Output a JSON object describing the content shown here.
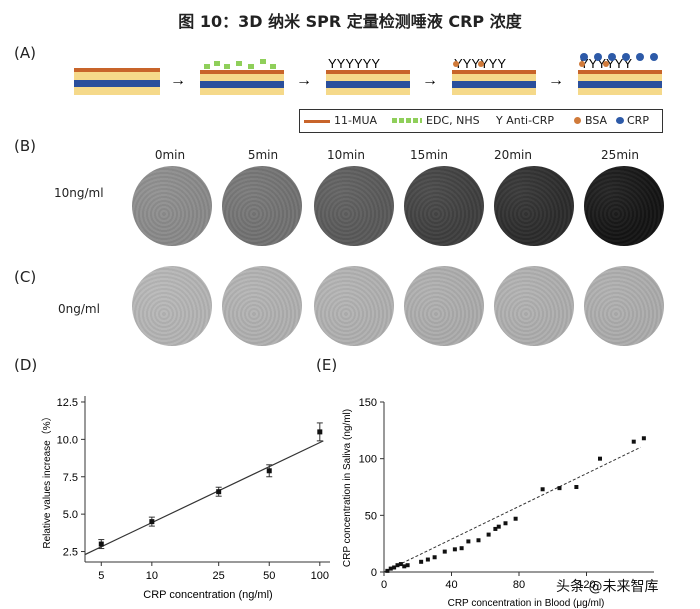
{
  "title": "图 10：3D 纳米 SPR 定量检测唾液 CRP 浓度",
  "panels": {
    "a": "(A)",
    "b": "(B)",
    "c": "(C)",
    "d": "(D)",
    "e": "(E)"
  },
  "legend": {
    "mua": "11-MUA",
    "edc": "EDC, NHS",
    "anti": "Y Anti-CRP",
    "bsa": "BSA",
    "crp": "CRP"
  },
  "times": [
    "0min",
    "5min",
    "10min",
    "15min",
    "20min",
    "25min"
  ],
  "row_b_label": "10ng/ml",
  "row_c_label": "0ng/ml",
  "colors": {
    "row_b": [
      "#8a8a8a",
      "#727272",
      "#5a5a5a",
      "#3f3f3f",
      "#2c2c2c",
      "#141414"
    ],
    "row_c": [
      "#b4b4b4",
      "#b0b0b0",
      "#b0b0b0",
      "#acacac",
      "#aeaeae",
      "#acacac"
    ],
    "mua": "#c8642a",
    "edc": "#8fcf5a",
    "bsa": "#d07a3a",
    "crp": "#2d5aa8",
    "blue_layer": "#2a4f9c",
    "yellow_layer": "#f5d98a"
  },
  "watermark": "头条 @未来智库",
  "chart_data": [
    {
      "type": "scatter",
      "panel": "D",
      "xlabel": "CRP concentration (ng/ml)",
      "ylabel": "Relative values increase（%）",
      "xscale": "log",
      "xticks": [
        5,
        10,
        25,
        50,
        100
      ],
      "yticks": [
        "2.5",
        "5.0",
        "7.5",
        "10.0",
        "12.5"
      ],
      "ylim": [
        2.5,
        12.5
      ],
      "points": [
        {
          "x": 5,
          "y": 3.0,
          "err": 0.3
        },
        {
          "x": 10,
          "y": 4.5,
          "err": 0.3
        },
        {
          "x": 25,
          "y": 6.5,
          "err": 0.3
        },
        {
          "x": 50,
          "y": 7.9,
          "err": 0.4
        },
        {
          "x": 100,
          "y": 10.5,
          "err": 0.6
        }
      ],
      "fit": [
        {
          "x": 4,
          "y": 2.3
        },
        {
          "x": 105,
          "y": 9.9
        }
      ]
    },
    {
      "type": "scatter",
      "panel": "E",
      "xlabel": "CRP concentration in Blood (μg/ml)",
      "ylabel": "CRP concentration in Saliva (ng/ml)",
      "xticks": [
        "0",
        "40",
        "80",
        "120"
      ],
      "yticks": [
        "0",
        "50",
        "100",
        "150"
      ],
      "xlim": [
        0,
        160
      ],
      "ylim": [
        0,
        150
      ],
      "points": [
        [
          2,
          1
        ],
        [
          4,
          3
        ],
        [
          6,
          4
        ],
        [
          8,
          6
        ],
        [
          10,
          7
        ],
        [
          12,
          5
        ],
        [
          14,
          6
        ],
        [
          22,
          9
        ],
        [
          26,
          11
        ],
        [
          30,
          13
        ],
        [
          36,
          18
        ],
        [
          42,
          20
        ],
        [
          46,
          21
        ],
        [
          50,
          27
        ],
        [
          56,
          28
        ],
        [
          62,
          33
        ],
        [
          66,
          38
        ],
        [
          68,
          40
        ],
        [
          72,
          43
        ],
        [
          78,
          47
        ],
        [
          94,
          73
        ],
        [
          104,
          74
        ],
        [
          114,
          75
        ],
        [
          128,
          100
        ],
        [
          148,
          115
        ],
        [
          154,
          118
        ]
      ],
      "fit": [
        [
          0,
          0
        ],
        [
          152,
          110
        ]
      ]
    }
  ]
}
